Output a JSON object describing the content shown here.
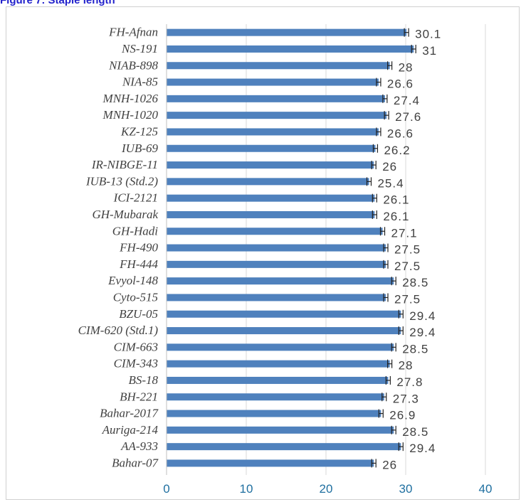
{
  "caption": "Figure 7: Staple length",
  "chart_data": {
    "type": "bar",
    "orientation": "horizontal",
    "title": "",
    "xlabel": "",
    "ylabel": "",
    "xlim": [
      0,
      40
    ],
    "x_ticks": [
      0,
      10,
      20,
      30,
      40
    ],
    "grid": "vertical gridlines",
    "bar_color": "#4f81bd",
    "error_bars": true,
    "data_labels": true,
    "categories": [
      "FH-Afnan",
      "NS-191",
      "NIAB-898",
      "NIA-85",
      "MNH-1026",
      "MNH-1020",
      "KZ-125",
      "IUB-69",
      "IR-NIBGE-11",
      "IUB-13 (Std.2)",
      "ICI-2121",
      "GH-Mubarak",
      "GH-Hadi",
      "FH-490",
      "FH-444",
      "Evyol-148",
      "Cyto-515",
      "BZU-05",
      "CIM-620 (Std.1)",
      "CIM-663",
      "CIM-343",
      "BS-18",
      "BH-221",
      "Bahar-2017",
      "Auriga-214",
      "AA-933",
      "Bahar-07"
    ],
    "values": [
      30.1,
      31,
      28,
      26.6,
      27.4,
      27.6,
      26.6,
      26.2,
      26,
      25.4,
      26.1,
      26.1,
      27.1,
      27.5,
      27.5,
      28.5,
      27.5,
      29.4,
      29.4,
      28.5,
      28,
      27.8,
      27.3,
      26.9,
      28.5,
      29.4,
      26
    ],
    "value_labels": [
      "30.1",
      "31",
      "28",
      "26.6",
      "27.4",
      "27.6",
      "26.6",
      "26.2",
      "26",
      "25.4",
      "26.1",
      "26.1",
      "27.1",
      "27.5",
      "27.5",
      "28.5",
      "27.5",
      "29.4",
      "29.4",
      "28.5",
      "28",
      "27.8",
      "27.3",
      "26.9",
      "28.5",
      "29.4",
      "26"
    ]
  }
}
